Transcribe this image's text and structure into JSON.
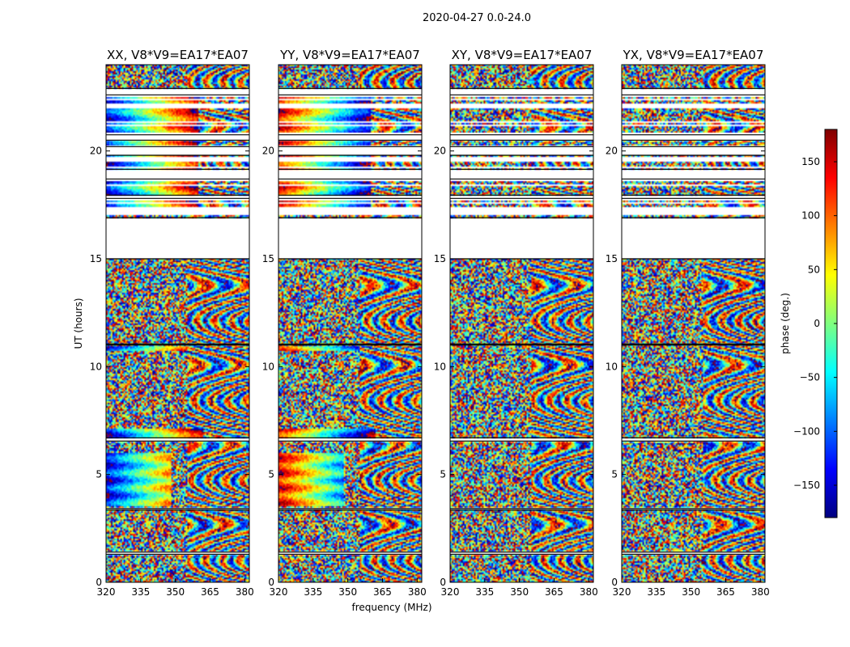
{
  "figure": {
    "suptitle": "2020-04-27 0.0-24.0"
  },
  "chart_data": {
    "type": "heatmap",
    "xlabel": "frequency (MHz)",
    "ylabel": "UT (hours)",
    "xlim": [
      320,
      382
    ],
    "ylim": [
      0,
      24
    ],
    "xticks": [
      320,
      335,
      350,
      365,
      380
    ],
    "yticks": [
      0,
      5,
      10,
      15,
      20
    ],
    "xtick_labels": [
      "320",
      "335",
      "350",
      "365",
      "380"
    ],
    "ytick_labels": [
      "0",
      "5",
      "10",
      "15",
      "20"
    ],
    "panels": [
      {
        "title": "XX, V8*V9=EA17*EA07",
        "pol": "XX"
      },
      {
        "title": "YY, V8*V9=EA17*EA07",
        "pol": "YY"
      },
      {
        "title": "XY, V8*V9=EA17*EA07",
        "pol": "XY"
      },
      {
        "title": "YX, V8*V9=EA17*EA07",
        "pol": "YX"
      }
    ],
    "data_gaps_hours": [
      [
        15.0,
        16.9
      ],
      [
        17.8,
        17.95
      ],
      [
        18.7,
        19.15
      ],
      [
        19.8,
        20.2
      ],
      [
        20.5,
        20.75
      ],
      [
        22.6,
        22.9
      ],
      [
        6.55,
        6.7
      ],
      [
        1.3,
        1.4
      ],
      [
        3.35,
        3.42
      ],
      [
        11.0,
        11.05
      ]
    ],
    "colorbar": {
      "label": "phase (deg.)",
      "range": [
        -180,
        180
      ],
      "ticks": [
        150,
        100,
        50,
        0,
        -50,
        -100,
        -150
      ],
      "tick_labels": [
        "150",
        "100",
        "50",
        "0",
        "−50",
        "−100",
        "−150"
      ],
      "colors": [
        "#00007f",
        "#0000ff",
        "#007fff",
        "#00ffff",
        "#7fff7f",
        "#ffff00",
        "#ff7f00",
        "#ff0000",
        "#7f0000"
      ]
    }
  }
}
